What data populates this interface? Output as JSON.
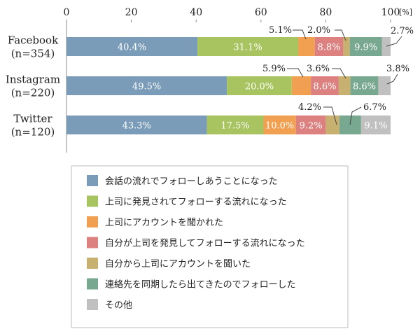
{
  "chart_data": {
    "type": "bar",
    "orientation": "horizontal",
    "stacked": true,
    "xlim": [
      0,
      100
    ],
    "x_ticks": [
      "0",
      "20",
      "40",
      "60",
      "80",
      "100"
    ],
    "x_unit": "[%]",
    "categories": [
      "Facebook\n(n=354)",
      "Instagram\n(n=220)",
      "Twitter\n(n=120)"
    ],
    "series": [
      {
        "name": "会話の流れでフォローしあうことになった",
        "color": "#7a9cb8",
        "values": [
          40.4,
          49.5,
          43.3
        ],
        "labels": [
          "40.4%",
          "49.5%",
          "43.3%"
        ]
      },
      {
        "name": "上司に発見されてフォローする流れになった",
        "color": "#a8c460",
        "values": [
          31.1,
          20.0,
          17.5
        ],
        "labels": [
          "31.1%",
          "20.0%",
          "17.5%"
        ]
      },
      {
        "name": "上司にアカウントを聞かれた",
        "color": "#f0a050",
        "values": [
          5.1,
          5.9,
          10.0
        ],
        "labels": [
          "5.1%",
          "5.9%",
          "10.0%"
        ]
      },
      {
        "name": "自分が上司を発見してフォローする流れになった",
        "color": "#dc8080",
        "values": [
          8.8,
          8.6,
          9.2
        ],
        "labels": [
          "8.8%",
          "8.6%",
          "9.2%"
        ]
      },
      {
        "name": "自分から上司にアカウントを聞いた",
        "color": "#c8b070",
        "values": [
          2.0,
          3.6,
          4.2
        ],
        "labels": [
          "2.0%",
          "3.6%",
          "4.2%"
        ]
      },
      {
        "name": "連絡先を同期したら出てきたのでフォローした",
        "color": "#78a890",
        "values": [
          9.9,
          8.6,
          6.7
        ],
        "labels": [
          "9.9%",
          "8.6%",
          "6.7%"
        ]
      },
      {
        "name": "その他",
        "color": "#c0c0c0",
        "values": [
          2.7,
          3.8,
          9.1
        ],
        "labels": [
          "2.7%",
          "3.8%",
          "9.1%"
        ]
      }
    ]
  }
}
